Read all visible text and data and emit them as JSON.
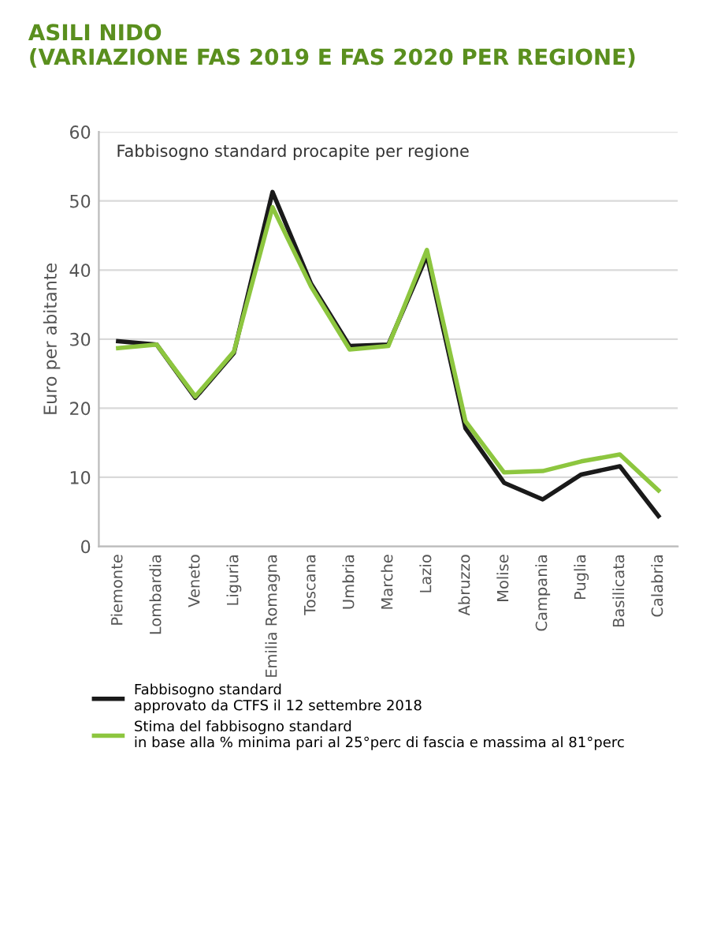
{
  "chart_data": {
    "type": "line",
    "title": "ASILI NIDO\n(VARIAZIONE FAS 2019 E FAS 2020 PER REGIONE)",
    "subtitle": "Fabbisogno standard procapite per regione",
    "ylabel": "Euro per abitante",
    "categories": [
      "Piemonte",
      "Lombardia",
      "Veneto",
      "Liguria",
      "Emilia Romagna",
      "Toscana",
      "Umbria",
      "Marche",
      "Lazio",
      "Abruzzo",
      "Molise",
      "Campania",
      "Puglia",
      "Basilicata",
      "Calabria"
    ],
    "series": [
      {
        "name": "Fabbisogno standard\napprovato da CTFS il 12 settembre 2018",
        "color": "#1a1a1a",
        "values": [
          29.7,
          29.2,
          21.5,
          28,
          51.3,
          38,
          29,
          29.2,
          42.1,
          17.1,
          9.2,
          6.8,
          10.4,
          11.6,
          4.4
        ]
      },
      {
        "name": "Stima del fabbisogno standard\nin base alla % minima pari al 25°perc di fascia e massima al 81°perc",
        "color": "#8dc63f",
        "values": [
          28.7,
          29.2,
          21.7,
          28.2,
          49.1,
          37.6,
          28.5,
          29,
          42.9,
          18.1,
          10.7,
          10.9,
          12.3,
          13.3,
          8.1
        ]
      }
    ],
    "ylim": [
      0,
      60
    ],
    "yticks": [
      0,
      10,
      20,
      30,
      40,
      50,
      60
    ],
    "grid": "y",
    "legend": "bottom",
    "marker": "none",
    "line_style": "solid"
  }
}
